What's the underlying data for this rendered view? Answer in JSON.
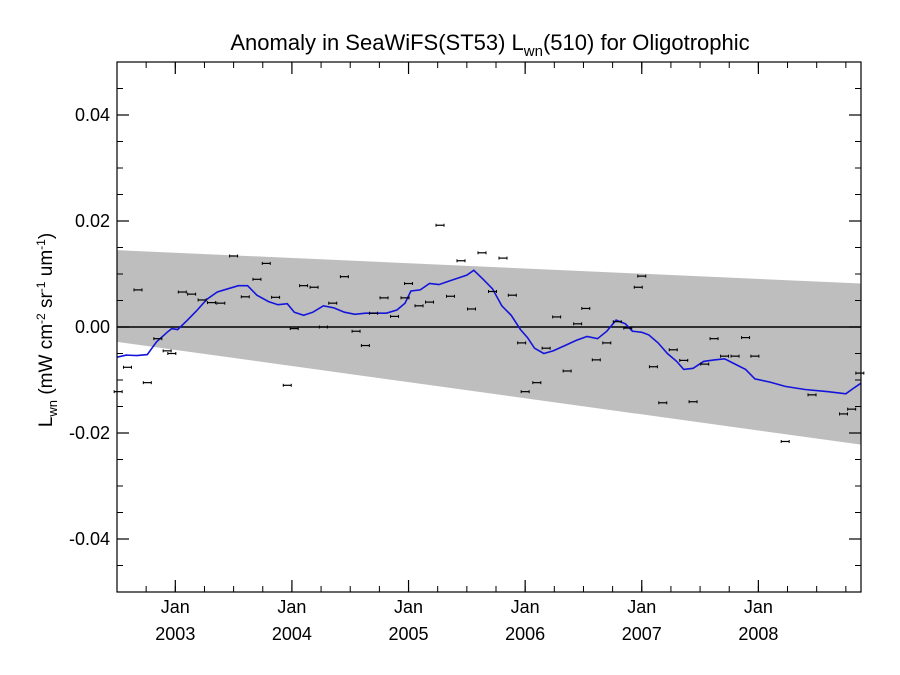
{
  "chart_data": {
    "type": "scatter",
    "title": {
      "prefix": "Anomaly in SeaWiFS(ST53) L",
      "sub": "wn",
      "suffix": "(510) for Oligotrophic"
    },
    "ylabel": {
      "main": "L",
      "sub": "wn",
      "open": " (mW cm",
      "exp1": "-2",
      "mid1": " sr",
      "exp2": "-1",
      "mid2": " um",
      "exp3": "-1",
      "close": ")"
    },
    "xlim": [
      2002.5,
      2008.88
    ],
    "ylim": [
      -0.05,
      0.05
    ],
    "y_ticks": [
      {
        "value": 0.04,
        "label": "0.04"
      },
      {
        "value": 0.02,
        "label": "0.02"
      },
      {
        "value": 0.0,
        "label": "0.00"
      },
      {
        "value": -0.02,
        "label": "-0.02"
      },
      {
        "value": -0.04,
        "label": "-0.04"
      }
    ],
    "y_minor_step": 0.005,
    "x_ticks": [
      {
        "value": 2003.0,
        "month": "Jan",
        "year": "2003"
      },
      {
        "value": 2004.0,
        "month": "Jan",
        "year": "2004"
      },
      {
        "value": 2005.0,
        "month": "Jan",
        "year": "2005"
      },
      {
        "value": 2006.0,
        "month": "Jan",
        "year": "2006"
      },
      {
        "value": 2007.0,
        "month": "Jan",
        "year": "2007"
      },
      {
        "value": 2008.0,
        "month": "Jan",
        "year": "2008"
      }
    ],
    "x_minor_step": 0.25,
    "band": {
      "upper": [
        [
          2002.5,
          0.0145
        ],
        [
          2008.88,
          0.0082
        ]
      ],
      "lower": [
        [
          2002.5,
          -0.0028
        ],
        [
          2008.88,
          -0.0222
        ]
      ],
      "color": "#bebebe"
    },
    "zero_line": 0.0,
    "points": [
      [
        2002.51,
        -0.0122
      ],
      [
        2002.59,
        -0.0076
      ],
      [
        2002.68,
        0.007
      ],
      [
        2002.76,
        -0.0105
      ],
      [
        2002.85,
        -0.0022
      ],
      [
        2002.93,
        -0.0045
      ],
      [
        2002.97,
        -0.005
      ],
      [
        2003.06,
        0.0066
      ],
      [
        2003.14,
        0.0062
      ],
      [
        2003.23,
        0.0051
      ],
      [
        2003.31,
        0.0046
      ],
      [
        2003.39,
        0.0045
      ],
      [
        2003.5,
        0.0134
      ],
      [
        2003.6,
        0.0057
      ],
      [
        2003.7,
        0.009
      ],
      [
        2003.78,
        0.012
      ],
      [
        2003.86,
        0.0056
      ],
      [
        2003.96,
        -0.011
      ],
      [
        2004.02,
        -0.0003
      ],
      [
        2004.1,
        0.0078
      ],
      [
        2004.19,
        0.0075
      ],
      [
        2004.27,
        0.0
      ],
      [
        2004.35,
        0.0045
      ],
      [
        2004.45,
        0.0095
      ],
      [
        2004.55,
        -0.0008
      ],
      [
        2004.63,
        -0.0035
      ],
      [
        2004.7,
        0.0026
      ],
      [
        2004.79,
        0.0055
      ],
      [
        2004.88,
        0.002
      ],
      [
        2004.97,
        0.0055
      ],
      [
        2005.0,
        0.0082
      ],
      [
        2005.09,
        0.004
      ],
      [
        2005.18,
        0.0047
      ],
      [
        2005.27,
        0.0192
      ],
      [
        2005.36,
        0.0058
      ],
      [
        2005.45,
        0.0125
      ],
      [
        2005.54,
        0.0034
      ],
      [
        2005.63,
        0.014
      ],
      [
        2005.72,
        0.0067
      ],
      [
        2005.81,
        0.013
      ],
      [
        2005.89,
        0.006
      ],
      [
        2005.97,
        -0.003
      ],
      [
        2006.0,
        -0.0122
      ],
      [
        2006.1,
        -0.0105
      ],
      [
        2006.18,
        -0.004
      ],
      [
        2006.27,
        0.0019
      ],
      [
        2006.36,
        -0.0083
      ],
      [
        2006.45,
        0.0006
      ],
      [
        2006.52,
        0.0035
      ],
      [
        2006.61,
        -0.0062
      ],
      [
        2006.7,
        -0.003
      ],
      [
        2006.79,
        0.001
      ],
      [
        2006.88,
        -0.0002
      ],
      [
        2006.97,
        0.0075
      ],
      [
        2007.0,
        0.0096
      ],
      [
        2007.1,
        -0.0075
      ],
      [
        2007.18,
        -0.0143
      ],
      [
        2007.27,
        -0.0043
      ],
      [
        2007.36,
        -0.0063
      ],
      [
        2007.44,
        -0.0141
      ],
      [
        2007.54,
        -0.007
      ],
      [
        2007.62,
        -0.0022
      ],
      [
        2007.71,
        -0.0055
      ],
      [
        2007.8,
        -0.0055
      ],
      [
        2007.89,
        -0.002
      ],
      [
        2007.97,
        -0.0055
      ],
      [
        2008.23,
        -0.0216
      ],
      [
        2008.46,
        -0.0128
      ],
      [
        2008.73,
        -0.0164
      ],
      [
        2008.8,
        -0.0155
      ],
      [
        2008.87,
        -0.0087
      ]
    ],
    "smooth": {
      "color": "#1414dc",
      "points": [
        [
          2002.5,
          -0.0057
        ],
        [
          2002.58,
          -0.0053
        ],
        [
          2002.67,
          -0.0054
        ],
        [
          2002.76,
          -0.0052
        ],
        [
          2002.84,
          -0.0028
        ],
        [
          2002.93,
          -0.001
        ],
        [
          2002.97,
          -0.0003
        ],
        [
          2003.02,
          -0.0005
        ],
        [
          2003.1,
          0.0012
        ],
        [
          2003.18,
          0.003
        ],
        [
          2003.27,
          0.0052
        ],
        [
          2003.36,
          0.0066
        ],
        [
          2003.45,
          0.0072
        ],
        [
          2003.54,
          0.0078
        ],
        [
          2003.62,
          0.0078
        ],
        [
          2003.7,
          0.006
        ],
        [
          2003.8,
          0.0048
        ],
        [
          2003.88,
          0.0042
        ],
        [
          2003.96,
          0.0044
        ],
        [
          2004.02,
          0.0028
        ],
        [
          2004.1,
          0.0022
        ],
        [
          2004.18,
          0.0028
        ],
        [
          2004.27,
          0.004
        ],
        [
          2004.36,
          0.0036
        ],
        [
          2004.45,
          0.0028
        ],
        [
          2004.54,
          0.0024
        ],
        [
          2004.63,
          0.0026
        ],
        [
          2004.72,
          0.0026
        ],
        [
          2004.81,
          0.0026
        ],
        [
          2004.9,
          0.0032
        ],
        [
          2004.97,
          0.0045
        ],
        [
          2005.02,
          0.0068
        ],
        [
          2005.1,
          0.007
        ],
        [
          2005.18,
          0.0082
        ],
        [
          2005.26,
          0.008
        ],
        [
          2005.34,
          0.0086
        ],
        [
          2005.42,
          0.0092
        ],
        [
          2005.5,
          0.0098
        ],
        [
          2005.56,
          0.0107
        ],
        [
          2005.64,
          0.009
        ],
        [
          2005.72,
          0.0072
        ],
        [
          2005.8,
          0.004
        ],
        [
          2005.88,
          0.0022
        ],
        [
          2005.96,
          -0.0005
        ],
        [
          2006.02,
          -0.002
        ],
        [
          2006.08,
          -0.004
        ],
        [
          2006.16,
          -0.005
        ],
        [
          2006.24,
          -0.0045
        ],
        [
          2006.34,
          -0.0035
        ],
        [
          2006.44,
          -0.0025
        ],
        [
          2006.53,
          -0.0018
        ],
        [
          2006.62,
          -0.0022
        ],
        [
          2006.7,
          -0.0008
        ],
        [
          2006.78,
          0.0013
        ],
        [
          2006.86,
          0.0006
        ],
        [
          2006.92,
          -0.0008
        ],
        [
          2007.0,
          -0.001
        ],
        [
          2007.06,
          -0.0015
        ],
        [
          2007.14,
          -0.003
        ],
        [
          2007.22,
          -0.005
        ],
        [
          2007.3,
          -0.0065
        ],
        [
          2007.36,
          -0.008
        ],
        [
          2007.44,
          -0.0078
        ],
        [
          2007.53,
          -0.0065
        ],
        [
          2007.62,
          -0.0062
        ],
        [
          2007.71,
          -0.006
        ],
        [
          2007.8,
          -0.007
        ],
        [
          2007.89,
          -0.008
        ],
        [
          2007.97,
          -0.0098
        ],
        [
          2008.1,
          -0.0104
        ],
        [
          2008.23,
          -0.0112
        ],
        [
          2008.4,
          -0.0118
        ],
        [
          2008.6,
          -0.0122
        ],
        [
          2008.75,
          -0.0126
        ],
        [
          2008.82,
          -0.0115
        ],
        [
          2008.88,
          -0.0106
        ]
      ]
    }
  }
}
